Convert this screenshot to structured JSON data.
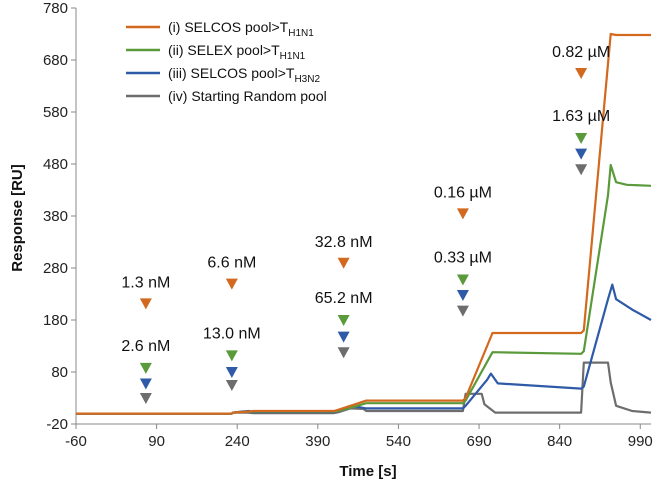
{
  "chart_data": {
    "type": "line",
    "xlabel": "Time [s]",
    "ylabel": "Response [RU]",
    "xlim": [
      -60,
      1010
    ],
    "ylim": [
      -20,
      780
    ],
    "xticks": [
      "-60",
      "90",
      "240",
      "390",
      "540",
      "690",
      "840",
      "990"
    ],
    "yticks": [
      "-20",
      "80",
      "180",
      "280",
      "380",
      "480",
      "580",
      "680",
      "780"
    ],
    "grid": false,
    "legend_position": "top-left",
    "series": [
      {
        "name_main": "(i) SELCOS pool>T",
        "name_sub": "H1N1",
        "color": "#d2691e",
        "x": [
          -60,
          230,
          232,
          250,
          262,
          270,
          420,
          430,
          460,
          480,
          660,
          665,
          715,
          880,
          885,
          935,
          945,
          1010
        ],
        "y": [
          0,
          0,
          2,
          3,
          4,
          5,
          5,
          8,
          18,
          25,
          25,
          30,
          155,
          155,
          160,
          730,
          728,
          728
        ]
      },
      {
        "name_main": "(ii) SELEX pool>T",
        "name_sub": "H1N1",
        "color": "#5a9a3a",
        "x": [
          -60,
          230,
          232,
          250,
          262,
          270,
          420,
          430,
          460,
          480,
          660,
          665,
          715,
          880,
          885,
          930,
          935,
          945,
          965,
          1010
        ],
        "y": [
          0,
          0,
          2,
          3,
          4,
          4,
          4,
          6,
          14,
          20,
          20,
          25,
          118,
          115,
          120,
          420,
          478,
          445,
          440,
          438
        ]
      },
      {
        "name_main": "(iii) SELCOS pool>T",
        "name_sub": "H3N2",
        "color": "#2e5aa8",
        "x": [
          -60,
          230,
          232,
          250,
          262,
          270,
          420,
          430,
          455,
          470,
          480,
          660,
          665,
          705,
          712,
          725,
          880,
          885,
          930,
          938,
          945,
          975,
          1010
        ],
        "y": [
          0,
          0,
          2,
          4,
          5,
          3,
          3,
          6,
          15,
          12,
          10,
          10,
          15,
          65,
          77,
          58,
          48,
          52,
          220,
          248,
          220,
          200,
          180
        ]
      },
      {
        "name_main": "(iv) Starting Random pool",
        "name_sub": "",
        "color": "#6d6d6d",
        "x": [
          -60,
          230,
          232,
          260,
          270,
          420,
          430,
          450,
          475,
          480,
          660,
          665,
          695,
          700,
          720,
          880,
          885,
          930,
          935,
          945,
          975,
          1010
        ],
        "y": [
          0,
          0,
          2,
          2,
          1,
          1,
          3,
          10,
          9,
          5,
          5,
          38,
          38,
          18,
          2,
          2,
          98,
          98,
          60,
          15,
          5,
          2
        ]
      }
    ],
    "injections": [
      {
        "x": 70,
        "labels": [
          "1.3 nM",
          "2.6 nM"
        ],
        "markers": [
          [
            "#d2691e",
            212
          ],
          [
            "#5a9a3a",
            88
          ],
          [
            "#2e5aa8",
            58
          ],
          [
            "#6d6d6d",
            30
          ]
        ]
      },
      {
        "x": 230,
        "labels": [
          "6.6 nM",
          "13.0 nM"
        ],
        "markers": [
          [
            "#d2691e",
            250
          ],
          [
            "#5a9a3a",
            112
          ],
          [
            "#2e5aa8",
            80
          ],
          [
            "#6d6d6d",
            55
          ]
        ]
      },
      {
        "x": 438,
        "labels": [
          "32.8 nM",
          "65.2 nM"
        ],
        "markers": [
          [
            "#d2691e",
            290
          ],
          [
            "#5a9a3a",
            180
          ],
          [
            "#2e5aa8",
            148
          ],
          [
            "#6d6d6d",
            118
          ]
        ]
      },
      {
        "x": 660,
        "labels": [
          "0.16 µM",
          "0.33 µM"
        ],
        "markers": [
          [
            "#d2691e",
            385
          ],
          [
            "#5a9a3a",
            258
          ],
          [
            "#2e5aa8",
            228
          ],
          [
            "#6d6d6d",
            198
          ]
        ]
      },
      {
        "x": 880,
        "labels": [
          "0.82 µM",
          "1.63 µM"
        ],
        "markers": [
          [
            "#d2691e",
            655
          ],
          [
            "#5a9a3a",
            530
          ],
          [
            "#2e5aa8",
            500
          ],
          [
            "#6d6d6d",
            470
          ]
        ]
      }
    ]
  }
}
